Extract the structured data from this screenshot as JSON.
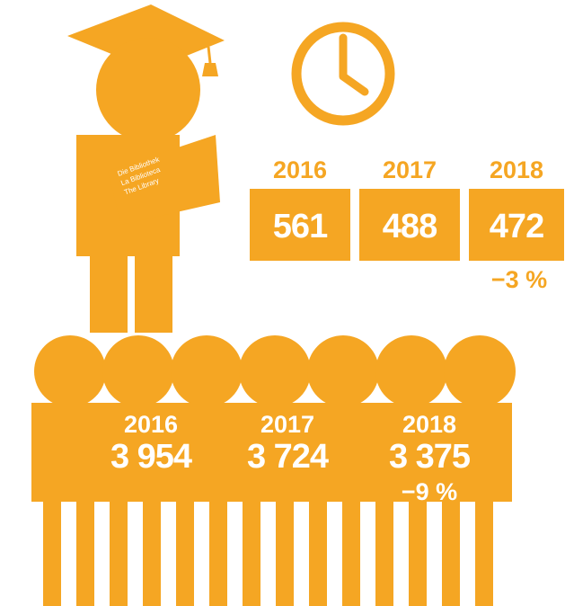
{
  "book": [
    "Die Bibliothek",
    "La Biblioteca",
    "The Library"
  ],
  "top": {
    "years": [
      "2016",
      "2017",
      "2018"
    ],
    "values": [
      "561",
      "488",
      "472"
    ],
    "change": "−3 %"
  },
  "bottom": {
    "years": [
      "2016",
      "2017",
      "2018"
    ],
    "values": [
      "3 954",
      "3 724",
      "3 375"
    ],
    "change": "−9 %"
  }
}
